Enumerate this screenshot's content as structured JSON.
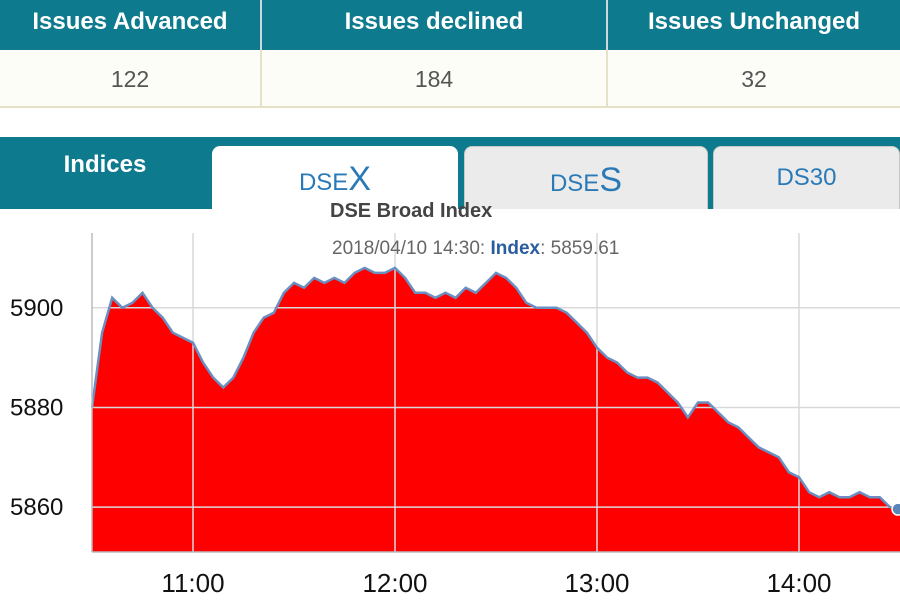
{
  "summary": {
    "headers": [
      "Issues Advanced",
      "Issues declined",
      "Issues Unchanged"
    ],
    "values": [
      "122",
      "184",
      "32"
    ]
  },
  "tabs": {
    "indices_label": "Indices",
    "dsex": {
      "prefix": "DSE",
      "letter": "X"
    },
    "dses": {
      "prefix": "DSE",
      "letter": "S"
    },
    "ds30": "DS30",
    "active": "DSEX"
  },
  "tooltip": {
    "date": "2018/04/10 14:30:",
    "series": "Index",
    "value": "5859.61"
  },
  "colors": {
    "header_bg": "#0e7a8e",
    "area_fill": "#ff0000",
    "line": "#6a8fc0",
    "tab_text": "#2a7ab8"
  },
  "chart_data": {
    "type": "area",
    "title": "DSE Broad Index",
    "xlabel": "",
    "ylabel": "",
    "x_ticks": [
      "11:00",
      "12:00",
      "13:00",
      "14:00"
    ],
    "y_ticks": [
      5860,
      5880,
      5900
    ],
    "xlim": [
      "10:30",
      "14:30"
    ],
    "ylim": [
      5851,
      5914
    ],
    "grid": true,
    "x": [
      "10:30",
      "10:33",
      "10:36",
      "10:39",
      "10:42",
      "10:45",
      "10:48",
      "10:51",
      "10:54",
      "10:57",
      "11:00",
      "11:03",
      "11:06",
      "11:09",
      "11:12",
      "11:15",
      "11:18",
      "11:21",
      "11:24",
      "11:27",
      "11:30",
      "11:33",
      "11:36",
      "11:39",
      "11:42",
      "11:45",
      "11:48",
      "11:51",
      "11:54",
      "11:57",
      "12:00",
      "12:03",
      "12:06",
      "12:09",
      "12:12",
      "12:15",
      "12:18",
      "12:21",
      "12:24",
      "12:27",
      "12:30",
      "12:33",
      "12:36",
      "12:39",
      "12:42",
      "12:45",
      "12:48",
      "12:51",
      "12:54",
      "12:57",
      "13:00",
      "13:03",
      "13:06",
      "13:09",
      "13:12",
      "13:15",
      "13:18",
      "13:21",
      "13:24",
      "13:27",
      "13:30",
      "13:33",
      "13:36",
      "13:39",
      "13:42",
      "13:45",
      "13:48",
      "13:51",
      "13:54",
      "13:57",
      "14:00",
      "14:03",
      "14:06",
      "14:09",
      "14:12",
      "14:15",
      "14:18",
      "14:21",
      "14:24",
      "14:27",
      "14:30"
    ],
    "series": [
      {
        "values": [
          5880,
          5895,
          5902,
          5900,
          5901,
          5903,
          5900,
          5898,
          5895,
          5894,
          5893,
          5889,
          5886,
          5884,
          5886,
          5890,
          5895,
          5898,
          5899,
          5903,
          5905,
          5904,
          5906,
          5905,
          5906,
          5905,
          5907,
          5908,
          5907,
          5907,
          5908,
          5906,
          5903,
          5903,
          5902,
          5903,
          5902,
          5904,
          5903,
          5905,
          5907,
          5906,
          5904,
          5901,
          5900,
          5900,
          5900,
          5899,
          5897,
          5895,
          5892,
          5890,
          5889,
          5887,
          5886,
          5886,
          5885,
          5883,
          5881,
          5878,
          5881,
          5881,
          5879,
          5877,
          5876,
          5874,
          5872,
          5871,
          5870,
          5867,
          5866,
          5863,
          5862,
          5863,
          5862,
          5862,
          5863,
          5862,
          5862,
          5860,
          5859.61
        ]
      }
    ]
  }
}
